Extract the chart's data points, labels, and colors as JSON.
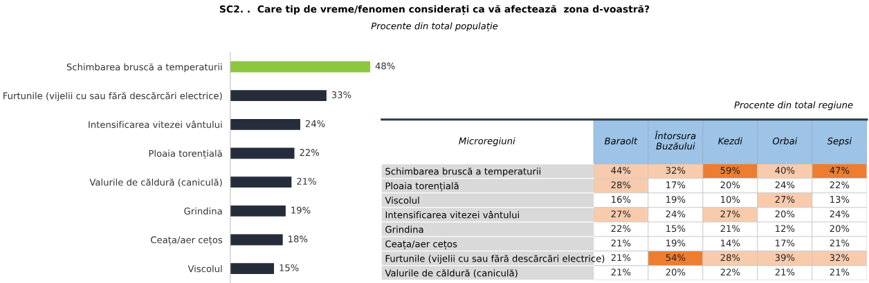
{
  "chart_data": [
    {
      "type": "bar",
      "orientation": "horizontal",
      "title": "SC2. .  Care tip de vreme/fenomen considerați ca vă afectează  zona d-voastră?",
      "subtitle": "Procente din total populație",
      "categories": [
        "Schimbarea bruscă a temperaturii",
        "Furtunile (vijelii cu sau fără descărcări electrice)",
        "Intensificarea vitezei vântului",
        "Ploaia torențială",
        "Valurile de căldură (caniculă)",
        "Grindina",
        "Ceața/aer cețos",
        "Viscolul"
      ],
      "values": [
        48,
        33,
        24,
        22,
        21,
        19,
        18,
        15
      ],
      "value_labels": [
        "48%",
        "33%",
        "24%",
        "22%",
        "21%",
        "19%",
        "18%",
        "15%"
      ],
      "colors": [
        "#8dc63f",
        "#262d3a",
        "#262d3a",
        "#262d3a",
        "#262d3a",
        "#262d3a",
        "#262d3a",
        "#262d3a"
      ]
    },
    {
      "type": "heatmap",
      "subtitle": "Procente din total regiune",
      "ylabel": "Microregiuni",
      "categories": [
        "Baraolt",
        "Întorsura\nBuzăului",
        "Kezdi",
        "Orbai",
        "Sepsi"
      ],
      "y_categories": [
        "Schimbarea bruscă a temperaturii",
        "Ploaia torențială",
        "Viscolul",
        "Intensificarea vitezei vântului",
        "Grindina",
        "Ceața/aer cețos",
        "Furtunile (vijelii cu sau fără descărcări electrice)",
        "Valurile de căldură (caniculă)"
      ],
      "cells": [
        [
          44,
          32,
          59,
          40,
          47
        ],
        [
          28,
          17,
          20,
          24,
          22
        ],
        [
          16,
          19,
          10,
          27,
          13
        ],
        [
          27,
          24,
          27,
          20,
          24
        ],
        [
          22,
          15,
          21,
          12,
          20
        ],
        [
          21,
          19,
          14,
          17,
          21
        ],
        [
          21,
          54,
          28,
          39,
          32
        ],
        [
          21,
          20,
          22,
          21,
          21
        ]
      ],
      "cell_labels": [
        [
          "44%",
          "32%",
          "59%",
          "40%",
          "47%"
        ],
        [
          "28%",
          "17%",
          "20%",
          "24%",
          "22%"
        ],
        [
          "16%",
          "19%",
          "10%",
          "27%",
          "13%"
        ],
        [
          "27%",
          "24%",
          "27%",
          "20%",
          "24%"
        ],
        [
          "22%",
          "15%",
          "21%",
          "12%",
          "20%"
        ],
        [
          "21%",
          "19%",
          "14%",
          "17%",
          "21%"
        ],
        [
          "21%",
          "54%",
          "28%",
          "39%",
          "32%"
        ],
        [
          "21%",
          "20%",
          "22%",
          "21%",
          "21%"
        ]
      ]
    }
  ]
}
